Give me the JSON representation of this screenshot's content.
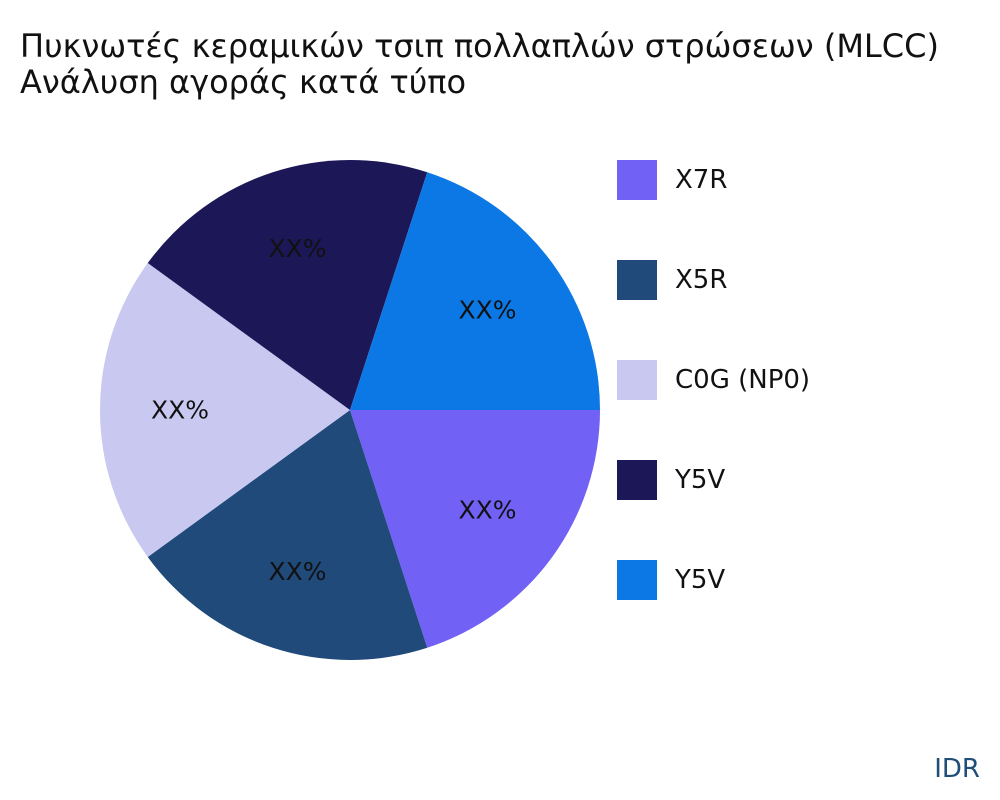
{
  "chart_data": {
    "type": "pie",
    "title_lines": [
      "Πυκνωτές κεραμικών τσιπ πολλαπλών στρώσεων (MLCC)",
      "Ανάλυση αγοράς κατά τύπο"
    ],
    "slices": [
      {
        "name": "X7R",
        "value": 20,
        "label": "XX%",
        "color": "#7161f5"
      },
      {
        "name": "X5R",
        "value": 20,
        "label": "XX%",
        "color": "#1f4a7a"
      },
      {
        "name": "C0G (NP0)",
        "value": 20,
        "label": "XX%",
        "color": "#c9c8f0"
      },
      {
        "name": "Y5V",
        "value": 20,
        "label": "XX%",
        "color": "#1c1757"
      },
      {
        "name": "Y5V",
        "value": 20,
        "label": "XX%",
        "color": "#0c78e6"
      }
    ],
    "legend_position": "right"
  },
  "watermark": "IDR"
}
